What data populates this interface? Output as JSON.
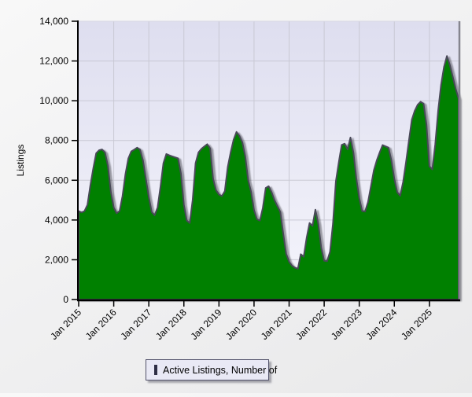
{
  "chart_data": {
    "type": "area",
    "title": "",
    "xlabel": "",
    "ylabel": "Listings",
    "ylim": [
      0,
      14000
    ],
    "y_ticks": [
      0,
      2000,
      4000,
      6000,
      8000,
      10000,
      12000,
      14000
    ],
    "x_tick_labels": [
      "Jan 2015",
      "Jan 2016",
      "Jan 2017",
      "Jan 2018",
      "Jan 2019",
      "Jan 2020",
      "Jan 2021",
      "Jan 2022",
      "Jan 2023",
      "Jan 2024",
      "Jan 2025"
    ],
    "x_start": "Jan 2015",
    "x_end": "Nov 2025",
    "x_interval_months": 1,
    "grid": true,
    "legend_position": "bottom",
    "series": [
      {
        "name": "Active Listings, Number of",
        "color": "#008000",
        "outline_color": "#4a4a58",
        "values": [
          4450,
          4380,
          4450,
          4760,
          5740,
          6600,
          7360,
          7510,
          7550,
          7400,
          6730,
          5420,
          4630,
          4340,
          4450,
          5200,
          6300,
          7100,
          7450,
          7540,
          7640,
          7540,
          7000,
          6070,
          5150,
          4400,
          4240,
          4630,
          5680,
          6860,
          7320,
          7250,
          7200,
          7150,
          7100,
          6330,
          4760,
          3970,
          3850,
          5000,
          6860,
          7400,
          7580,
          7700,
          7815,
          7600,
          6070,
          5500,
          5280,
          5200,
          5450,
          6660,
          7400,
          8035,
          8430,
          8230,
          7910,
          7200,
          6000,
          5415,
          4500,
          4040,
          3970,
          4600,
          5610,
          5700,
          5400,
          5000,
          4700,
          4400,
          3300,
          2300,
          1900,
          1700,
          1600,
          1550,
          2280,
          2150,
          3100,
          3850,
          3700,
          4520,
          3800,
          2600,
          1950,
          1930,
          2400,
          3800,
          5940,
          6900,
          7780,
          7840,
          7550,
          8150,
          7400,
          6100,
          5100,
          4450,
          4430,
          4900,
          5700,
          6500,
          7000,
          7400,
          7770,
          7700,
          7640,
          7000,
          6070,
          5400,
          5220,
          5900,
          6900,
          8000,
          9050,
          9500,
          9800,
          9950,
          9850,
          8800,
          6700,
          6550,
          7800,
          9500,
          10800,
          11700,
          12250,
          11800,
          11200,
          10600,
          10100
        ]
      }
    ]
  },
  "legend": {
    "label": "Active Listings, Number of",
    "swatch_color": "#008000"
  },
  "colors": {
    "page_bg": "#f0f0f1",
    "plot_bg_top": "#dedeef",
    "plot_bg_bottom": "#f5f5fc",
    "grid": "#c9c9d4",
    "axis": "#000000",
    "area_fill": "#008000",
    "area_outline": "#4a4a58",
    "legend_bg": "#e9e9f5",
    "legend_border": "#52526a"
  }
}
